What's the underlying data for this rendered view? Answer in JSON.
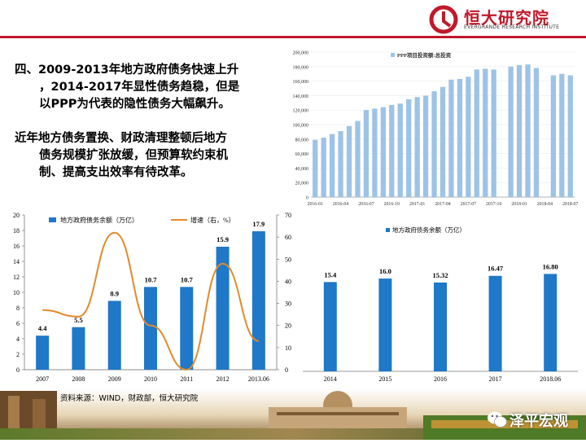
{
  "header": {
    "brand_name": "恒大研究院",
    "brand_sub": "EVERGRANDE RESEARCH INSTITUTE",
    "accent_color": "#c0192b"
  },
  "text": {
    "p1_line1": "四、2009-2013年地方政府债务快速上升",
    "p1_line2": "，2014-2017年显性债务趋稳，但是",
    "p1_line3": "以PPP为代表的隐性债务大幅飙升。",
    "p2_line1": "近年地方债务置换、财政清理整顿后地方",
    "p2_line2": "债务规模扩张放缓，但预算软约束机",
    "p2_line3": "制、提高支出效率有待改革。"
  },
  "footer": {
    "source": "资料来源：WIND，财政部，恒大研究院",
    "wechat": "泽平宏观"
  },
  "chart_data": [
    {
      "type": "bar",
      "title": "",
      "series": [
        {
          "name": "PPP项目投资额:总投资",
          "values": [
            79000,
            82000,
            87000,
            91000,
            98000,
            105000,
            120000,
            122000,
            124000,
            127000,
            129000,
            135000,
            138000,
            140000,
            146000,
            152000,
            162000,
            163000,
            166000,
            176000,
            177000,
            176000,
            null,
            180000,
            182000,
            183000,
            178000,
            null,
            168000,
            170000,
            168000
          ]
        }
      ],
      "categories": [
        "2016-01",
        "2016-02",
        "2016-03",
        "2016-04",
        "2016-05",
        "2016-06",
        "2016-07",
        "2016-08",
        "2016-09",
        "2016-10",
        "2016-11",
        "2016-12",
        "2017-01",
        "2017-02",
        "2017-03",
        "2017-04",
        "2017-05",
        "2017-06",
        "2017-07",
        "2017-08",
        "2017-09",
        "2017-10",
        "2017-11",
        "2017-12",
        "2018-01",
        "2018-02",
        "2018-03",
        "2018-04",
        "2018-05",
        "2018-06",
        "2018-07"
      ],
      "tick_labels": [
        "2016-01",
        "2016-04",
        "2016-07",
        "2016-10",
        "2017-01",
        "2017-04",
        "2017-07",
        "2017-10",
        "2018-01",
        "2018-04",
        "2018-07"
      ],
      "y_ticks": [
        "0",
        "20,000",
        "40,000",
        "60,000",
        "80,000",
        "100,000",
        "120,000",
        "140,000",
        "160,000",
        "180,000",
        "200,000"
      ],
      "ylim": [
        0,
        200000
      ],
      "color": "#9dc3e6",
      "legend": "top"
    },
    {
      "type": "bar",
      "title": "",
      "categories": [
        "2007",
        "2008",
        "2009",
        "2010",
        "2011",
        "2012",
        "2013.06"
      ],
      "series": [
        {
          "name": "地方政府债务余额（万亿）",
          "values": [
            4.4,
            5.5,
            8.9,
            10.7,
            10.7,
            15.9,
            17.9
          ],
          "labels": [
            "4.4",
            "5.5",
            "8.9",
            "10.7",
            "10.7",
            "15.9",
            "17.9"
          ],
          "color": "#1f78c8"
        },
        {
          "name": "增速（右，%）",
          "values": [
            27,
            24,
            62,
            20,
            0,
            48,
            13
          ],
          "color": "#e28a2b",
          "type": "line"
        }
      ],
      "y_ticks": [
        "0",
        "2",
        "4",
        "6",
        "8",
        "10",
        "12",
        "14",
        "16",
        "18",
        "20"
      ],
      "y2_ticks": [
        "0",
        "10",
        "20",
        "30",
        "40",
        "50",
        "60",
        "70"
      ],
      "ylim": [
        0,
        20
      ],
      "y2lim": [
        0,
        70
      ],
      "legend": "top"
    },
    {
      "type": "bar",
      "title": "",
      "categories": [
        "2014",
        "2015",
        "2016",
        "2017",
        "2018.06"
      ],
      "series": [
        {
          "name": "地方政府债务余额（万亿）",
          "values": [
            15.4,
            16.0,
            15.32,
            16.47,
            16.8
          ],
          "labels": [
            "15.4",
            "16.0",
            "15.32",
            "16.47",
            "16.80"
          ],
          "color": "#1f78c8"
        }
      ],
      "ylim": [
        0,
        25
      ],
      "legend": "top"
    }
  ]
}
